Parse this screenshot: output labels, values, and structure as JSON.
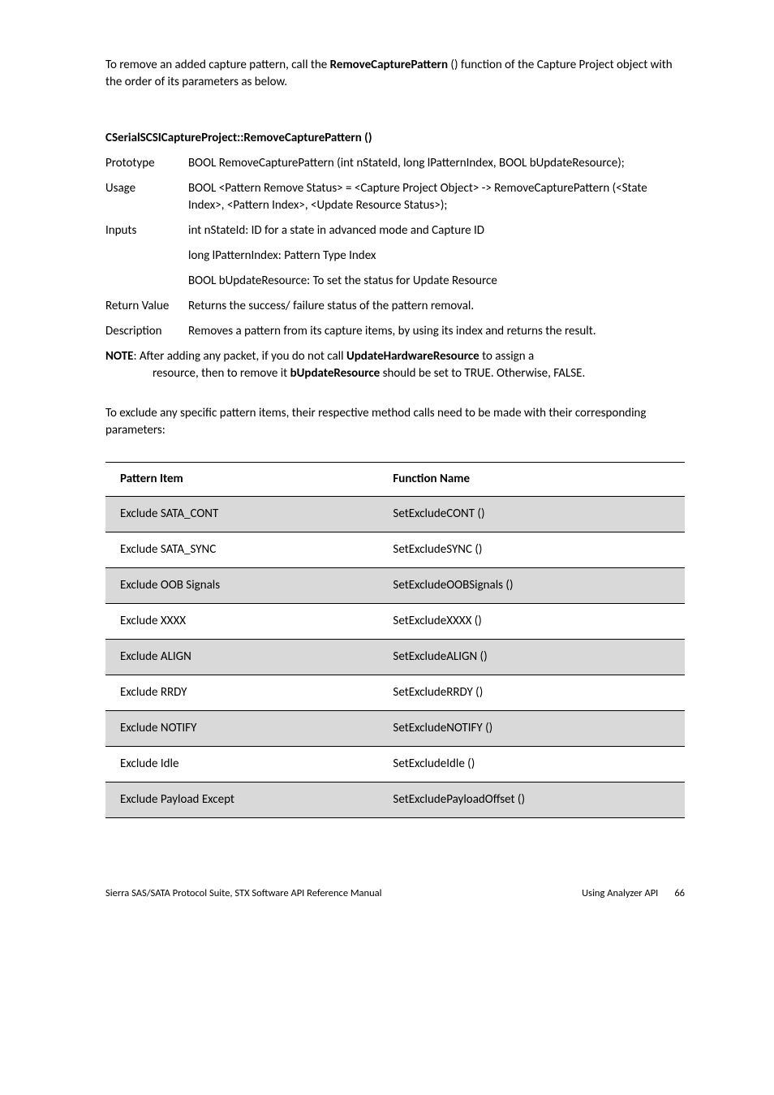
{
  "intro": {
    "prefix": "To remove an added capture pattern, call the ",
    "bold": "RemoveCapturePattern",
    "suffix": " () function of the Capture Project object with the order of its parameters as below."
  },
  "heading": "CSerialSCSICaptureProject::RemoveCapturePattern ()",
  "defs": {
    "prototype_label": "Prototype",
    "prototype_text": "BOOL RemoveCapturePattern (int nStateId, long lPatternIndex, BOOL bUpdateResource);",
    "usage_label": "Usage",
    "usage_text": "BOOL <Pattern Remove Status> = <Capture Project Object> -> RemoveCapturePattern (<State Index>, <Pattern Index>, <Update Resource Status>);",
    "inputs_label": "Inputs",
    "inputs_text": "int nStateId: ID for a state in advanced mode and Capture ID",
    "inputs_line2": "long lPatternIndex: Pattern Type Index",
    "inputs_line3": "BOOL bUpdateResource: To set the status for Update Resource",
    "return_label": "Return Value",
    "return_text": "Returns the success/ failure status of the pattern removal.",
    "desc_label": "Description",
    "desc_text": "Removes a pattern from its capture items, by using its index and returns the result."
  },
  "note": {
    "label": "NOTE",
    "line1_a": ": After adding any packet, if you do not call ",
    "line1_bold": "UpdateHardwareResource",
    "line1_b": " to assign a",
    "line2_a": "resource, then to remove it ",
    "line2_bold": "bUpdateResource",
    "line2_b": " should be set to TRUE. Otherwise, FALSE."
  },
  "mid_para": "To exclude any specific pattern items, their respective method calls need to be made with their corresponding parameters:",
  "table": {
    "col1": "Pattern Item",
    "col2": "Function Name",
    "rows": [
      {
        "c1": "Exclude SATA_CONT",
        "c2": "SetExcludeCONT ()",
        "shaded": true
      },
      {
        "c1": "Exclude SATA_SYNC",
        "c2": "SetExcludeSYNC ()",
        "shaded": false
      },
      {
        "c1": "Exclude OOB Signals",
        "c2": "SetExcludeOOBSignals ()",
        "shaded": true
      },
      {
        "c1": "Exclude XXXX",
        "c2": "SetExcludeXXXX ()",
        "shaded": false
      },
      {
        "c1": "Exclude ALIGN",
        "c2": "SetExcludeALIGN ()",
        "shaded": true
      },
      {
        "c1": "Exclude RRDY",
        "c2": "SetExcludeRRDY ()",
        "shaded": false
      },
      {
        "c1": "Exclude NOTIFY",
        "c2": "SetExcludeNOTIFY ()",
        "shaded": true
      },
      {
        "c1": "Exclude Idle",
        "c2": "SetExcludeIdle ()",
        "shaded": false
      },
      {
        "c1": "Exclude Payload Except",
        "c2": "SetExcludePayloadOffset ()",
        "shaded": true
      }
    ]
  },
  "footer": {
    "left": "Sierra SAS/SATA Protocol Suite, STX Software API Reference Manual",
    "right_label": "Using Analyzer API",
    "page": "66"
  }
}
